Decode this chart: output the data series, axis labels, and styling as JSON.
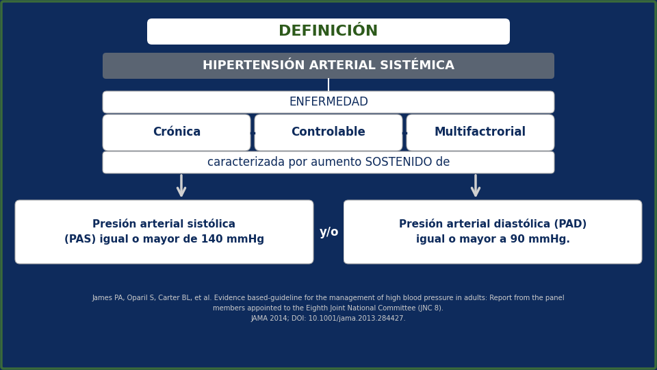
{
  "bg_color": "#0e2b5c",
  "title_text": "DEFINICIÓN",
  "title_bg": "#ffffff",
  "title_text_color": "#2d5a1b",
  "subtitle_text": "HIPERTENSIÓN ARTERIAL SISTÉMICA",
  "subtitle_bg": "#5a6472",
  "subtitle_text_color": "#ffffff",
  "enfermedad_text": "ENFERMEDAD",
  "enfermedad_bg": "#ffffff",
  "enfermedad_text_color": "#0e2b5c",
  "boxes": [
    "Crónica",
    "Controlable",
    "Multifactrorial"
  ],
  "box_bg": "#ffffff",
  "box_text_color": "#0e2b5c",
  "caracterizada_text": "caracterizada por aumento SOSTENIDO de",
  "caracterizada_bg": "#ffffff",
  "caracterizada_text_color": "#0e2b5c",
  "left_box_text": "Presión arterial sistólica\n(PAS) igual o mayor de 140 mmHg",
  "right_box_text": "Presión arterial diastólica (PAD)\nigual o mayor a 90 mmHg.",
  "yo_text": "y/o",
  "yo_bg": "#0e2b5c",
  "yo_text_color": "#ffffff",
  "bottom_box_bg": "#ffffff",
  "bottom_text_color": "#0e2b5c",
  "arrow_color": "#d0d0d0",
  "connector_color": "#ffffff",
  "reference_text": "James PA, Oparil S, Carter BL, et al. Evidence based-guideline for the management of high blood pressure in adults: Report from the panel\nmembers appointed to the Eighth Joint National Committee (JNC 8).\nJAMA 2014; DOI: 10.1001/jama.2013.284427.",
  "reference_color": "#cccccc",
  "border_color": "#3a6a3a",
  "dash_color": "#0e2b5c"
}
